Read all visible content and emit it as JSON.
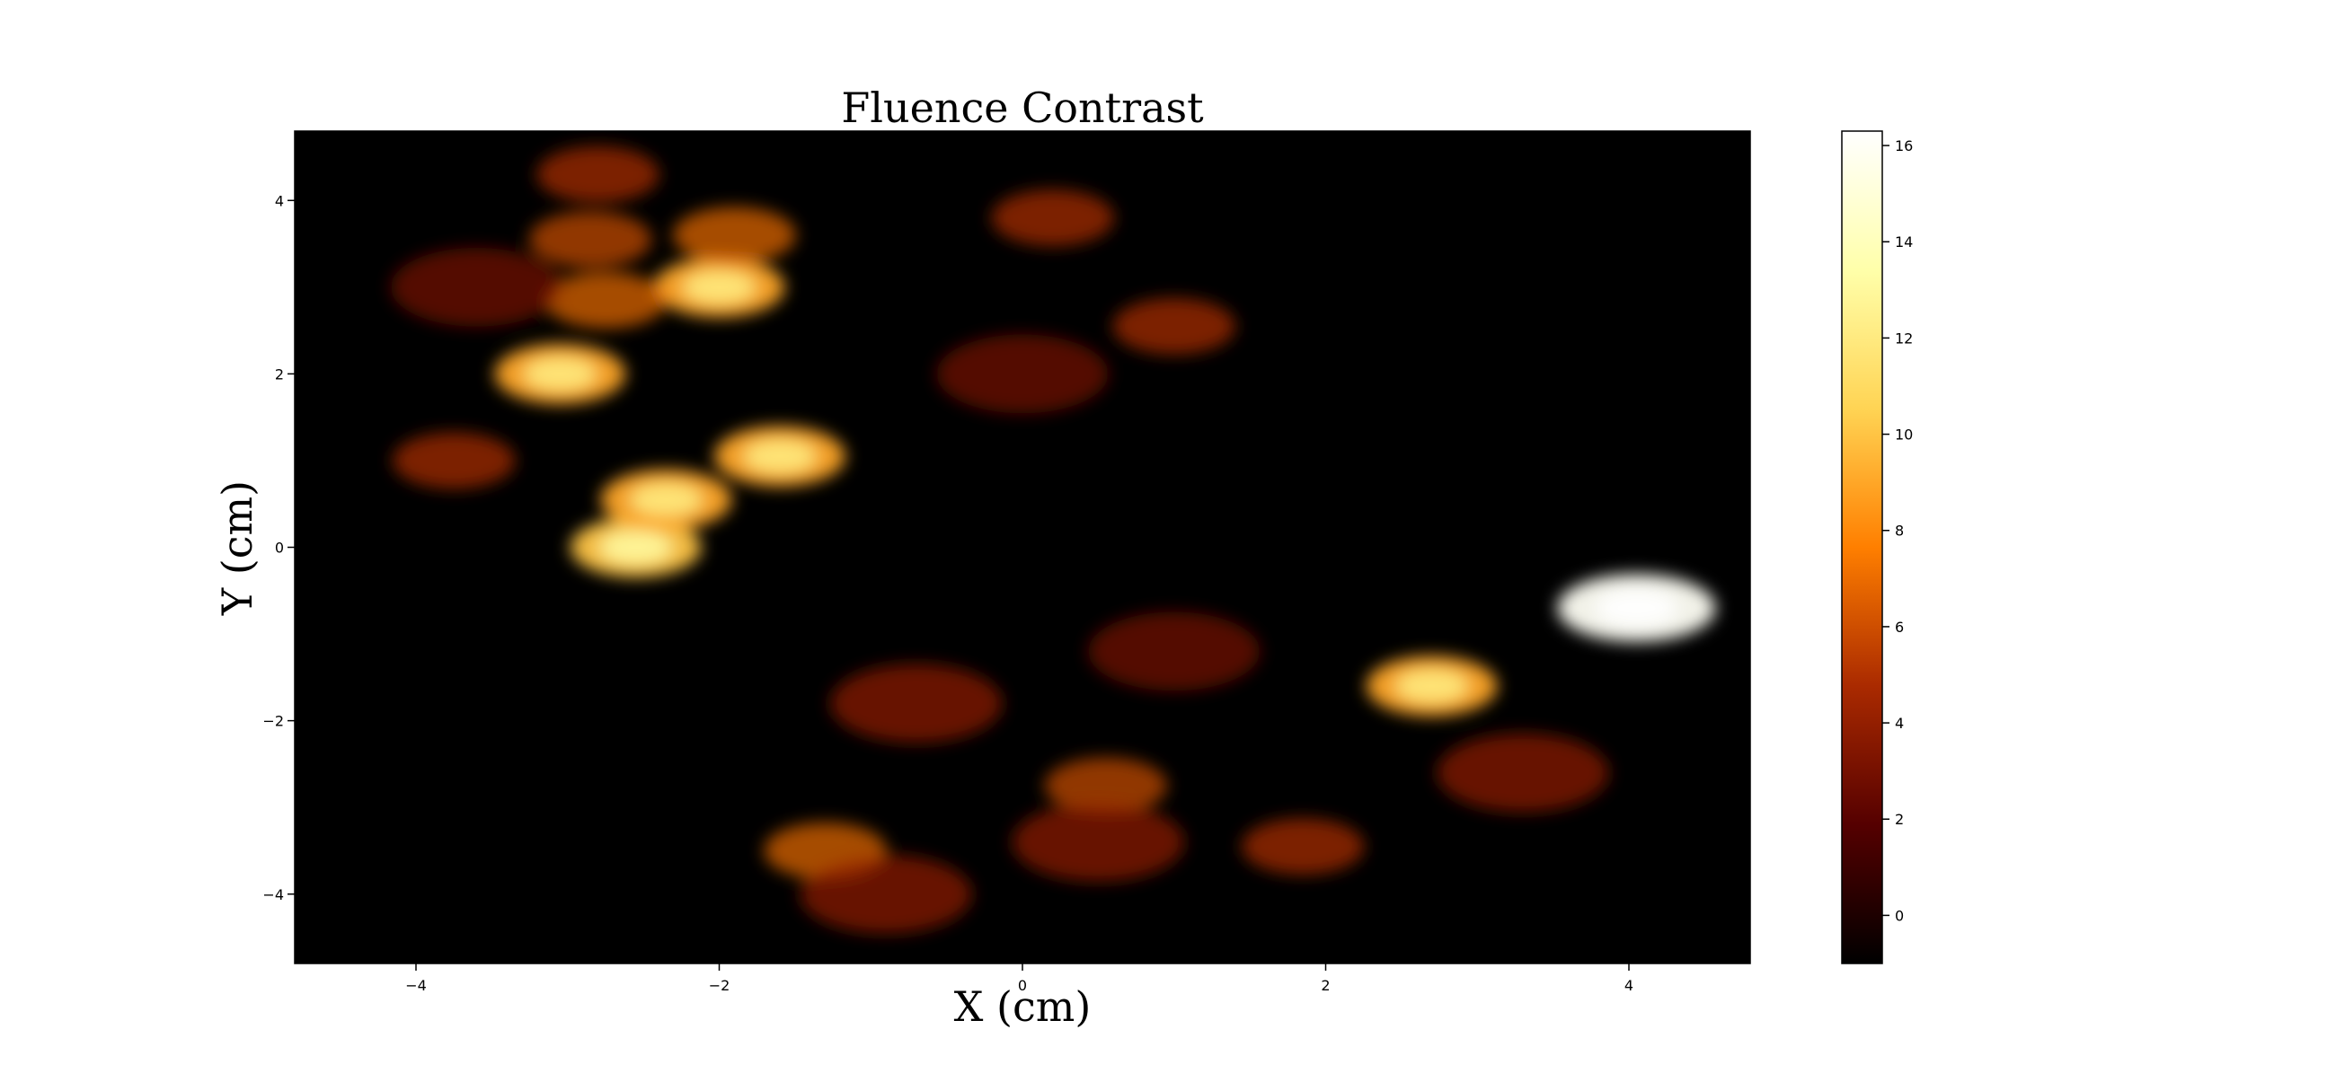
{
  "chart_data": {
    "type": "heatmap",
    "title": "Fluence Contrast",
    "xlabel": "X (cm)",
    "ylabel": "Y (cm)",
    "xlim": [
      -4.8,
      4.8
    ],
    "ylim": [
      -4.8,
      4.8
    ],
    "xticks": [
      -4,
      -2,
      0,
      2,
      4
    ],
    "yticks": [
      -4,
      -2,
      0,
      2,
      4
    ],
    "xtick_labels": [
      "−4",
      "−2",
      "0",
      "2",
      "4"
    ],
    "ytick_labels": [
      "−4",
      "−2",
      "0",
      "2",
      "4"
    ],
    "colormap": "afmhot",
    "grid": false,
    "colorbar": {
      "range": [
        -1,
        16.3
      ],
      "ticks": [
        0,
        2,
        4,
        6,
        8,
        10,
        12,
        14,
        16
      ],
      "tick_labels": [
        "0",
        "2",
        "4",
        "6",
        "8",
        "10",
        "12",
        "14",
        "16"
      ],
      "stops": [
        "#000000",
        "#550000",
        "#aa2a00",
        "#ff7f00",
        "#ffd454",
        "#ffffaa",
        "#ffffff"
      ]
    },
    "background_value": 0,
    "approx_hotspots": [
      {
        "x": 4.05,
        "y": -0.7,
        "value": 16
      },
      {
        "x": 2.7,
        "y": -1.6,
        "value": 9
      },
      {
        "x": -2.55,
        "y": 0.0,
        "value": 10
      },
      {
        "x": -2.35,
        "y": 0.55,
        "value": 9
      },
      {
        "x": -3.05,
        "y": 2.0,
        "value": 9
      },
      {
        "x": -1.6,
        "y": 1.05,
        "value": 9
      },
      {
        "x": -2.0,
        "y": 3.0,
        "value": 9
      },
      {
        "x": -2.75,
        "y": 2.85,
        "value": 7
      },
      {
        "x": -1.9,
        "y": 3.6,
        "value": 7
      },
      {
        "x": -2.85,
        "y": 3.55,
        "value": 6
      },
      {
        "x": -2.8,
        "y": 4.3,
        "value": 5
      },
      {
        "x": -3.75,
        "y": 1.0,
        "value": 5
      },
      {
        "x": -1.3,
        "y": -3.5,
        "value": 7
      },
      {
        "x": 0.55,
        "y": -2.75,
        "value": 6
      },
      {
        "x": 1.0,
        "y": 2.55,
        "value": 5
      },
      {
        "x": 0.2,
        "y": 3.8,
        "value": 5
      },
      {
        "x": -0.7,
        "y": -1.8,
        "value": 4
      },
      {
        "x": 0.5,
        "y": -3.4,
        "value": 4
      },
      {
        "x": 1.85,
        "y": -3.45,
        "value": 5
      },
      {
        "x": 3.3,
        "y": -2.6,
        "value": 4
      },
      {
        "x": -0.9,
        "y": -4.0,
        "value": 4
      },
      {
        "x": 1.0,
        "y": -1.2,
        "value": 3
      },
      {
        "x": 0.0,
        "y": 2.0,
        "value": 3
      },
      {
        "x": -3.6,
        "y": 3.0,
        "value": 3
      }
    ]
  }
}
